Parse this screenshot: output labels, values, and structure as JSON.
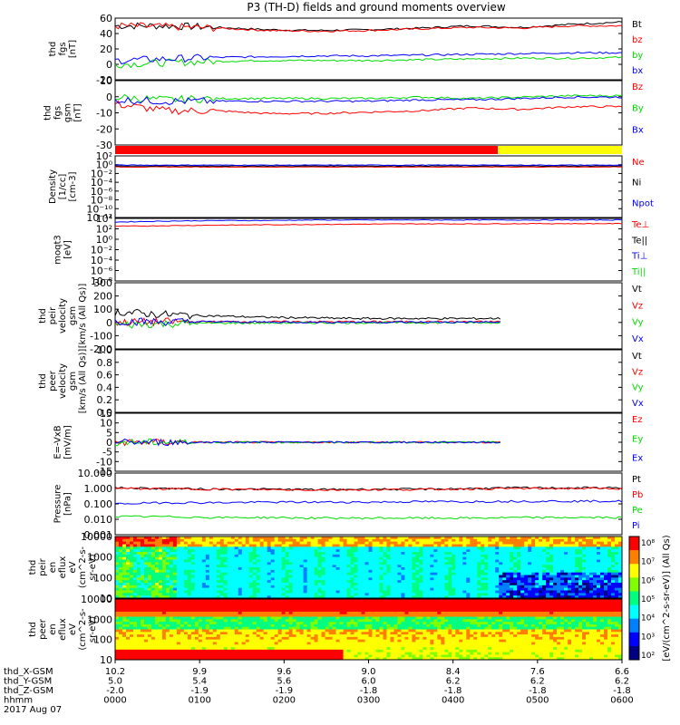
{
  "title": "P3 (TH-D) fields and ground moments overview",
  "colors": {
    "black": "#000000",
    "red": "#ff0000",
    "green": "#00dd00",
    "blue": "#0000ff",
    "yellow": "#ffff00"
  },
  "chart_data": [
    {
      "type": "line",
      "id": "fgs",
      "ylabel": [
        "thd",
        "fgs",
        "[nT]"
      ],
      "ylim": [
        -20,
        60
      ],
      "yticks": [
        "60",
        "40",
        "20",
        "0",
        "-20"
      ],
      "legend": [
        {
          "name": "Bt",
          "color": "black"
        },
        {
          "name": "bz",
          "color": "red"
        },
        {
          "name": "by",
          "color": "green"
        },
        {
          "name": "bx",
          "color": "blue"
        }
      ],
      "series": [
        {
          "name": "Bt",
          "values": [
            50,
            50,
            48,
            45,
            44,
            45,
            47,
            50,
            48,
            52,
            55
          ]
        },
        {
          "name": "bz",
          "values": [
            50,
            49,
            47,
            44,
            43,
            44,
            46,
            48,
            47,
            50,
            50
          ]
        },
        {
          "name": "by",
          "values": [
            0,
            2,
            4,
            5,
            5,
            5,
            6,
            7,
            8,
            8,
            9
          ]
        },
        {
          "name": "bx",
          "values": [
            5,
            7,
            9,
            10,
            11,
            11,
            12,
            13,
            14,
            15,
            15
          ]
        }
      ]
    },
    {
      "type": "line",
      "id": "fgs_gsm",
      "ylabel": [
        "thd",
        "fgs",
        "gsm",
        "[nT]"
      ],
      "ylim": [
        -35,
        12
      ],
      "yticks": [
        "10",
        "0",
        "-10",
        "-20",
        "-30"
      ],
      "legend": [
        {
          "name": "Bz",
          "color": "red"
        },
        {
          "name": "By",
          "color": "green"
        },
        {
          "name": "Bx",
          "color": "blue"
        }
      ],
      "series": [
        {
          "name": "Bz",
          "values": [
            -5,
            -10,
            -10,
            -12,
            -12,
            -11,
            -10,
            -8,
            -9,
            -7,
            -7
          ]
        },
        {
          "name": "By",
          "values": [
            0,
            -2,
            -1,
            -1,
            -1,
            -1,
            0,
            -1,
            0,
            1,
            1
          ]
        },
        {
          "name": "Bx",
          "values": [
            -2,
            -3,
            -3,
            -3,
            -3,
            -3,
            -2,
            -2,
            -1,
            0,
            0
          ]
        }
      ]
    },
    {
      "type": "bar",
      "id": "mode",
      "values": [
        "red",
        "yellow"
      ]
    },
    {
      "type": "line",
      "id": "density",
      "ylabel": [
        "Density",
        "[1/cc]",
        "[cm-3]"
      ],
      "ylim": [
        "1e-12",
        "1e2"
      ],
      "yticks": [
        "10²",
        "10⁰",
        "10⁻²",
        "10⁻⁴",
        "10⁻⁶",
        "10⁻⁸",
        "10⁻¹⁰",
        "10⁻¹²"
      ],
      "legend": [
        {
          "name": "Ne",
          "color": "red"
        },
        {
          "name": "Ni",
          "color": "black"
        },
        {
          "name": "Npot",
          "color": "blue"
        }
      ],
      "series": [
        {
          "name": "Ne",
          "values": [
            0.3,
            0.3,
            0.3,
            0.3,
            0.3,
            0.3,
            0.3,
            0.3,
            0.3,
            0.3,
            0.3
          ]
        },
        {
          "name": "Ni",
          "values": [
            0.5,
            0.5,
            0.5,
            0.5,
            0.5,
            0.5,
            0.5,
            0.5,
            0.5,
            0.5,
            0.5
          ]
        },
        {
          "name": "Npot",
          "values": [
            0.8,
            0.8,
            0.8,
            0.8,
            0.8,
            0.8,
            0.8,
            0.8,
            0.8,
            0.8,
            0.8
          ]
        }
      ]
    },
    {
      "type": "line",
      "id": "moms",
      "ylabel": [
        "moqt3",
        "[eV]"
      ],
      "ylim": [
        "1e-8",
        "1e4"
      ],
      "yticks": [
        "10⁴",
        "10²",
        "10⁰",
        "10⁻²",
        "10⁻⁴",
        "10⁻⁶",
        "10⁻⁸"
      ],
      "legend": [
        {
          "name": "Te⊥",
          "color": "red"
        },
        {
          "name": "Te||",
          "color": "black"
        },
        {
          "name": "Ti⊥",
          "color": "blue"
        },
        {
          "name": "Ti||",
          "color": "green"
        }
      ],
      "series": [
        {
          "name": "Te⊥",
          "values": [
            300,
            400,
            500,
            600,
            700,
            800,
            900,
            900,
            1000,
            1000,
            1000
          ]
        },
        {
          "name": "Ti⊥",
          "values": [
            2000,
            3000,
            4000,
            4000,
            5000,
            5000,
            5000,
            5000,
            5000,
            5000,
            5000
          ]
        }
      ]
    },
    {
      "type": "line",
      "id": "peir_vel",
      "ylabel": [
        "thd",
        "peir",
        "velocity",
        "gsm",
        "[km/s (All Qs)]"
      ],
      "ylim": [
        -200,
        300
      ],
      "yticks": [
        "300",
        "200",
        "100",
        "0",
        "-100",
        "-200"
      ],
      "legend": [
        {
          "name": "Vt",
          "color": "black"
        },
        {
          "name": "Vz",
          "color": "red"
        },
        {
          "name": "Vy",
          "color": "green"
        },
        {
          "name": "Vx",
          "color": "blue"
        }
      ],
      "series": [
        {
          "name": "Vt",
          "values": [
            80,
            60,
            50,
            40,
            35,
            30,
            30,
            30,
            30
          ]
        },
        {
          "name": "Vz",
          "values": [
            0,
            5,
            5,
            5,
            5,
            5,
            5,
            5,
            5
          ]
        },
        {
          "name": "Vy",
          "values": [
            -20,
            -10,
            -5,
            -5,
            -3,
            -2,
            -2,
            -2,
            -2
          ]
        },
        {
          "name": "Vx",
          "values": [
            10,
            5,
            5,
            3,
            2,
            2,
            2,
            2,
            2
          ]
        }
      ]
    },
    {
      "type": "line",
      "id": "peer_vel",
      "ylabel": [
        "thd",
        "peer",
        "velocity",
        "gsm",
        "[km/s (All Qs)]"
      ],
      "ylim": [
        0,
        1
      ],
      "yticks": [
        "1.0",
        "0.8",
        "0.6",
        "0.4",
        "0.2",
        "0.0"
      ],
      "legend": [
        {
          "name": "Vt",
          "color": "black"
        },
        {
          "name": "Vz",
          "color": "red"
        },
        {
          "name": "Vy",
          "color": "green"
        },
        {
          "name": "Vx",
          "color": "blue"
        }
      ]
    },
    {
      "type": "line",
      "id": "efield",
      "ylabel": [
        "E=-VxB",
        "[mV/m]"
      ],
      "ylim": [
        -15,
        15
      ],
      "yticks": [
        "15",
        "10",
        "5",
        "0",
        "-5",
        "-10",
        "-15"
      ],
      "legend": [
        {
          "name": "Ez",
          "color": "red"
        },
        {
          "name": "Ey",
          "color": "green"
        },
        {
          "name": "Ex",
          "color": "blue"
        }
      ],
      "series": [
        {
          "name": "Ez",
          "values": [
            0,
            0,
            0,
            0,
            0,
            0,
            0,
            0,
            0
          ]
        },
        {
          "name": "Ey",
          "values": [
            0,
            0,
            0,
            0,
            0,
            0,
            0,
            0,
            0
          ]
        },
        {
          "name": "Ex",
          "values": [
            0,
            0,
            0,
            0,
            0,
            0,
            0,
            0,
            0
          ]
        }
      ]
    },
    {
      "type": "line",
      "id": "pressure",
      "ylabel": [
        "Pressure",
        "[nPa]"
      ],
      "ylim": [
        "0.001",
        "10"
      ],
      "log": true,
      "yticks": [
        "10.000",
        "1.000",
        "0.100",
        "0.010",
        "0.001"
      ],
      "legend": [
        {
          "name": "Pt",
          "color": "black"
        },
        {
          "name": "Pb",
          "color": "red"
        },
        {
          "name": "Pe",
          "color": "green"
        },
        {
          "name": "Pi",
          "color": "blue"
        }
      ],
      "series": [
        {
          "name": "Pt",
          "values": [
            1.1,
            1.0,
            0.9,
            0.9,
            0.85,
            0.9,
            0.9,
            1.0,
            1.1,
            1.1,
            1.1
          ]
        },
        {
          "name": "Pb",
          "values": [
            1.0,
            0.95,
            0.9,
            0.85,
            0.8,
            0.85,
            0.85,
            0.95,
            1.0,
            1.0,
            1.0
          ]
        },
        {
          "name": "Pe",
          "values": [
            0.015,
            0.015,
            0.013,
            0.013,
            0.012,
            0.012,
            0.012,
            0.012,
            0.013,
            0.013,
            0.013
          ]
        },
        {
          "name": "Pi",
          "values": [
            0.1,
            0.12,
            0.12,
            0.13,
            0.13,
            0.13,
            0.14,
            0.14,
            0.15,
            0.15,
            0.15
          ]
        }
      ]
    },
    {
      "type": "heatmap",
      "id": "peir_en",
      "ylabel": [
        "thd",
        "peir",
        "en",
        "eflux",
        "eV",
        "(cm^2-s-",
        "sr-eV)"
      ],
      "yticks": [
        "10000",
        "1000",
        "100",
        "10"
      ]
    },
    {
      "type": "heatmap",
      "id": "peer_en",
      "ylabel": [
        "thd",
        "peer",
        "en",
        "eflux",
        "eV",
        "(cm^2-s-",
        "sr-eV)"
      ],
      "yticks": [
        "10000",
        "1000",
        "100",
        "10"
      ]
    }
  ],
  "colorbar": {
    "label": "[eV/(cm^2-s-sr-eV)] (All Qs)",
    "ticks": [
      "10⁸",
      "10⁷",
      "10⁶",
      "10⁵",
      "10⁴",
      "10³",
      "10²"
    ]
  },
  "xaxis": {
    "rows": [
      {
        "label": "thd_X-GSM",
        "values": [
          "10.2",
          "9.9",
          "9.6",
          "9.0",
          "8.4",
          "7.6",
          "6.6"
        ]
      },
      {
        "label": "thd_Y-GSM",
        "values": [
          "5.0",
          "5.4",
          "5.6",
          "6.0",
          "6.2",
          "6.2",
          "6.2"
        ]
      },
      {
        "label": "thd_Z-GSM",
        "values": [
          "-2.0",
          "-1.9",
          "-1.9",
          "-1.8",
          "-1.8",
          "-1.8",
          "-1.8"
        ]
      },
      {
        "label": "hhmm",
        "values": [
          "0000",
          "0100",
          "0200",
          "0300",
          "0400",
          "0500",
          "0600"
        ]
      }
    ],
    "date": "2017 Aug 07"
  }
}
